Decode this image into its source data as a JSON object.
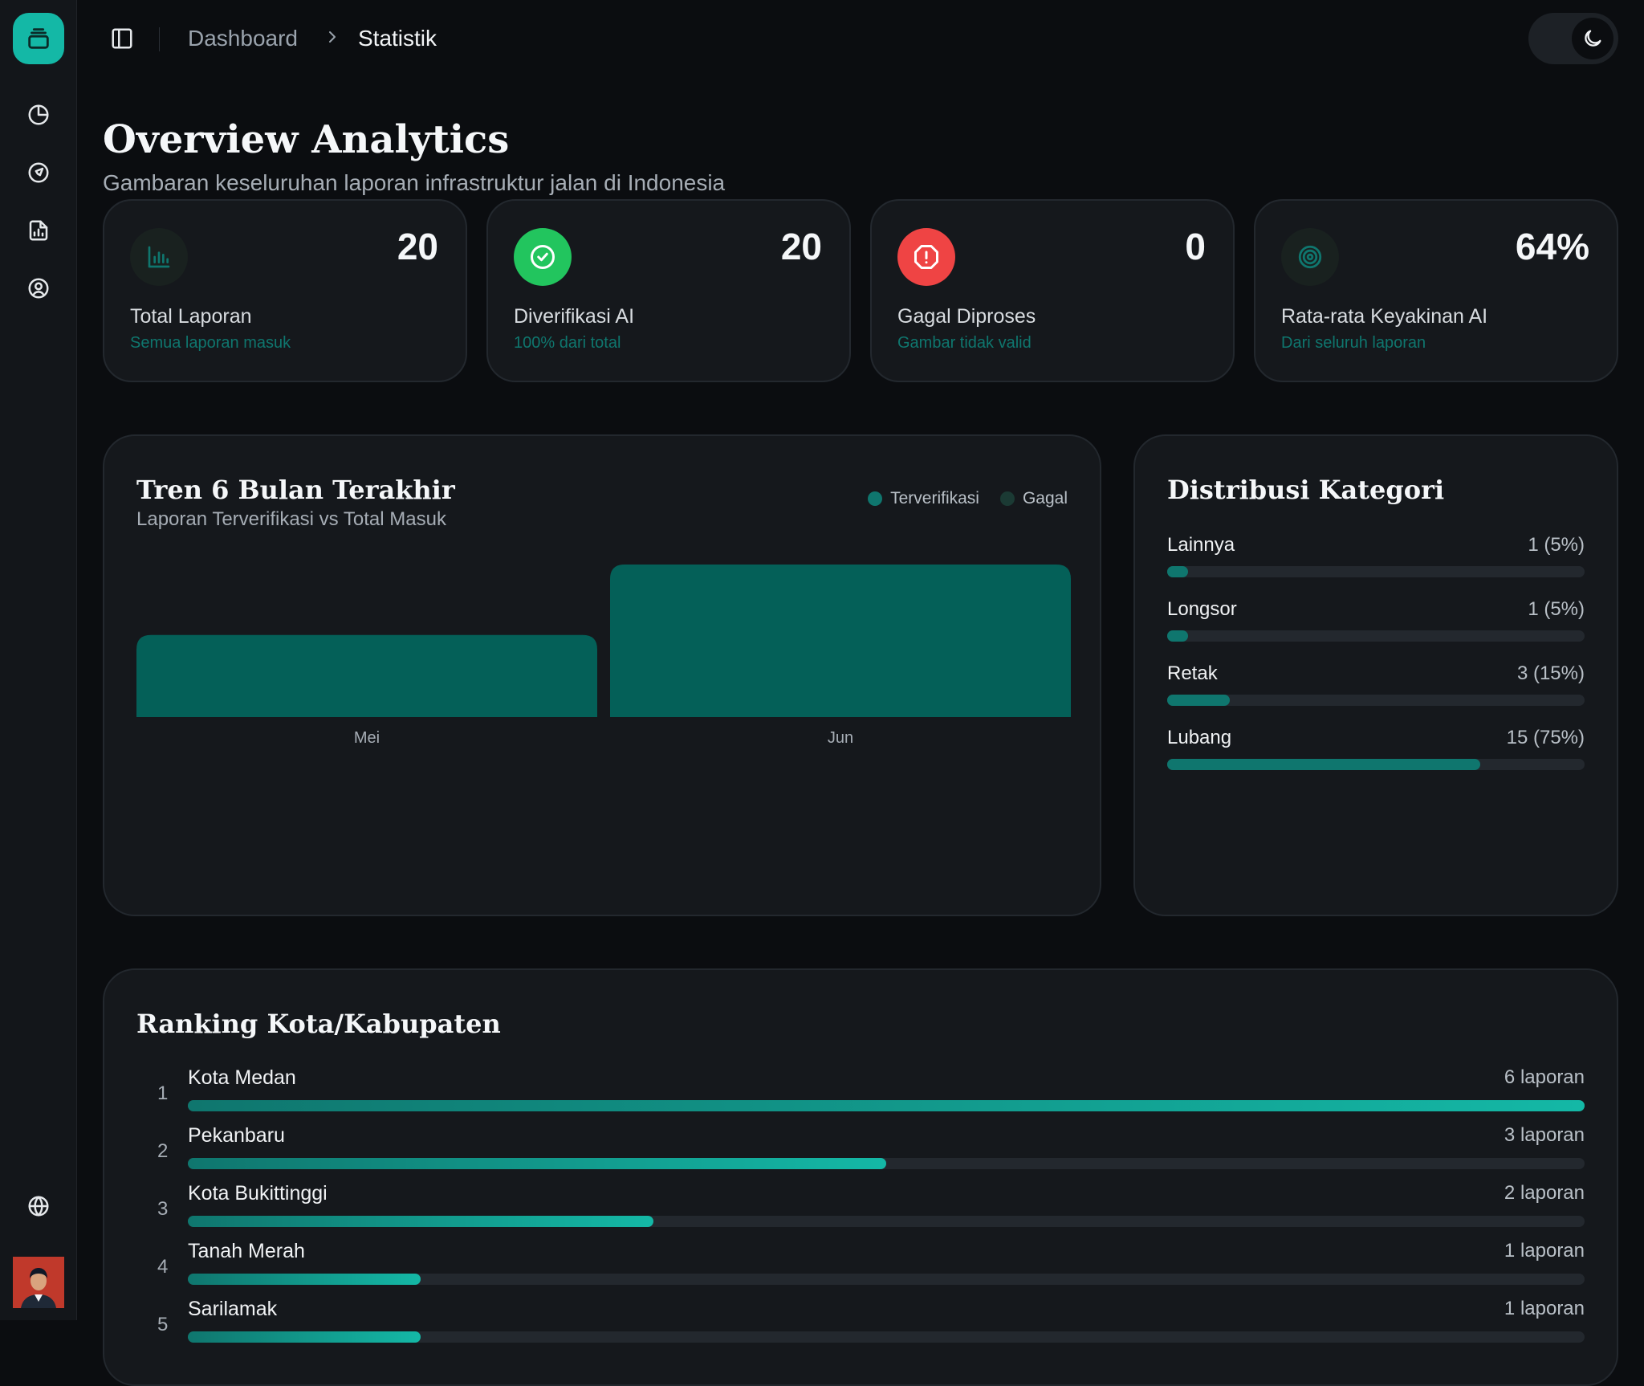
{
  "colors": {
    "accent": "#14b8a6",
    "accent_dark": "#0f766e",
    "bar": "#046058",
    "success": "#22c55e",
    "danger": "#ef4444",
    "panel": "#15181c"
  },
  "sidebar": {
    "items": [
      {
        "icon": "pie-chart-icon"
      },
      {
        "icon": "navigation-icon"
      },
      {
        "icon": "report-icon"
      },
      {
        "icon": "user-circle-icon"
      }
    ],
    "bottom_icon": "globe-icon"
  },
  "header": {
    "breadcrumb": [
      "Dashboard",
      "Statistik"
    ]
  },
  "page": {
    "title": "Overview Analytics",
    "subtitle": "Gambaran keseluruhan laporan infrastruktur jalan di Indonesia"
  },
  "stats": [
    {
      "value": "20",
      "label": "Total Laporan",
      "sub": "Semua laporan masuk",
      "icon": "bar-chart-icon"
    },
    {
      "value": "20",
      "label": "Diverifikasi AI",
      "sub": "100% dari total",
      "icon": "check-circle-icon"
    },
    {
      "value": "0",
      "label": "Gagal Diproses",
      "sub": "Gambar tidak valid",
      "icon": "alert-circle-icon"
    },
    {
      "value": "64%",
      "label": "Rata-rata Keyakinan AI",
      "sub": "Dari seluruh laporan",
      "icon": "target-icon"
    }
  ],
  "trend": {
    "title": "Tren 6 Bulan Terakhir",
    "subtitle": "Laporan Terverifikasi vs Total Masuk",
    "legend": [
      "Terverifikasi",
      "Gagal"
    ]
  },
  "chart_data": {
    "type": "bar",
    "categories": [
      "Mei",
      "Jun"
    ],
    "series": [
      {
        "name": "Terverifikasi",
        "values": [
          7,
          13
        ]
      },
      {
        "name": "Gagal",
        "values": [
          0,
          0
        ]
      }
    ],
    "title": "Tren 6 Bulan Terakhir",
    "subtitle": "Laporan Terverifikasi vs Total Masuk",
    "xlabel": "",
    "ylabel": "",
    "ylim": [
      0,
      13
    ],
    "grid": false,
    "legend_position": "top-right"
  },
  "categories": {
    "title": "Distribusi Kategori",
    "items": [
      {
        "name": "Lainnya",
        "value": "1 (5%)",
        "percent": 5
      },
      {
        "name": "Longsor",
        "value": "1 (5%)",
        "percent": 5
      },
      {
        "name": "Retak",
        "value": "3 (15%)",
        "percent": 15
      },
      {
        "name": "Lubang",
        "value": "15 (75%)",
        "percent": 75
      }
    ]
  },
  "ranking": {
    "title": "Ranking Kota/Kabupaten",
    "items": [
      {
        "rank": "1",
        "name": "Kota Medan",
        "value": "6 laporan",
        "count": 6
      },
      {
        "rank": "2",
        "name": "Pekanbaru",
        "value": "3 laporan",
        "count": 3
      },
      {
        "rank": "3",
        "name": "Kota Bukittinggi",
        "value": "2 laporan",
        "count": 2
      },
      {
        "rank": "4",
        "name": "Tanah Merah",
        "value": "1 laporan",
        "count": 1
      },
      {
        "rank": "5",
        "name": "Sarilamak",
        "value": "1 laporan",
        "count": 1
      }
    ]
  }
}
